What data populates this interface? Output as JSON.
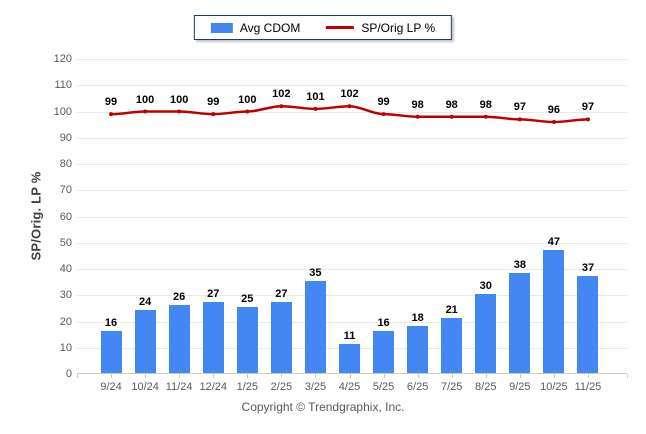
{
  "legend": {
    "items": [
      {
        "label": "Avg CDOM",
        "type": "bar",
        "color": "#4486f2"
      },
      {
        "label": "SP/Orig LP %",
        "type": "line",
        "color": "#c00000"
      }
    ],
    "border_color": "#1e3a5f"
  },
  "footer": {
    "copyright": "Copyright © Trendgraphix, Inc."
  },
  "chart_data": {
    "type": "bar+line combo",
    "categories": [
      "9/24",
      "10/24",
      "11/24",
      "12/24",
      "1/25",
      "2/25",
      "3/25",
      "4/25",
      "5/25",
      "6/25",
      "7/25",
      "8/25",
      "9/25",
      "10/25",
      "11/25"
    ],
    "series": [
      {
        "name": "Avg CDOM",
        "type": "bar",
        "color": "#4486f2",
        "values": [
          16,
          24,
          26,
          27,
          25,
          27,
          35,
          11,
          16,
          18,
          21,
          30,
          38,
          47,
          37
        ]
      },
      {
        "name": "SP/Orig LP %",
        "type": "line",
        "color": "#c00000",
        "values": [
          99,
          100,
          100,
          99,
          100,
          102,
          101,
          102,
          99,
          98,
          98,
          98,
          97,
          96,
          97
        ]
      }
    ],
    "title": "",
    "xlabel": "",
    "ylabel": "SP/Orig. LP %",
    "ylim": [
      0,
      120
    ],
    "ytick_step": 10,
    "grid": "horizontal gridlines on",
    "legend_position": "top-center",
    "data_labels": "shown above bars and line points"
  }
}
